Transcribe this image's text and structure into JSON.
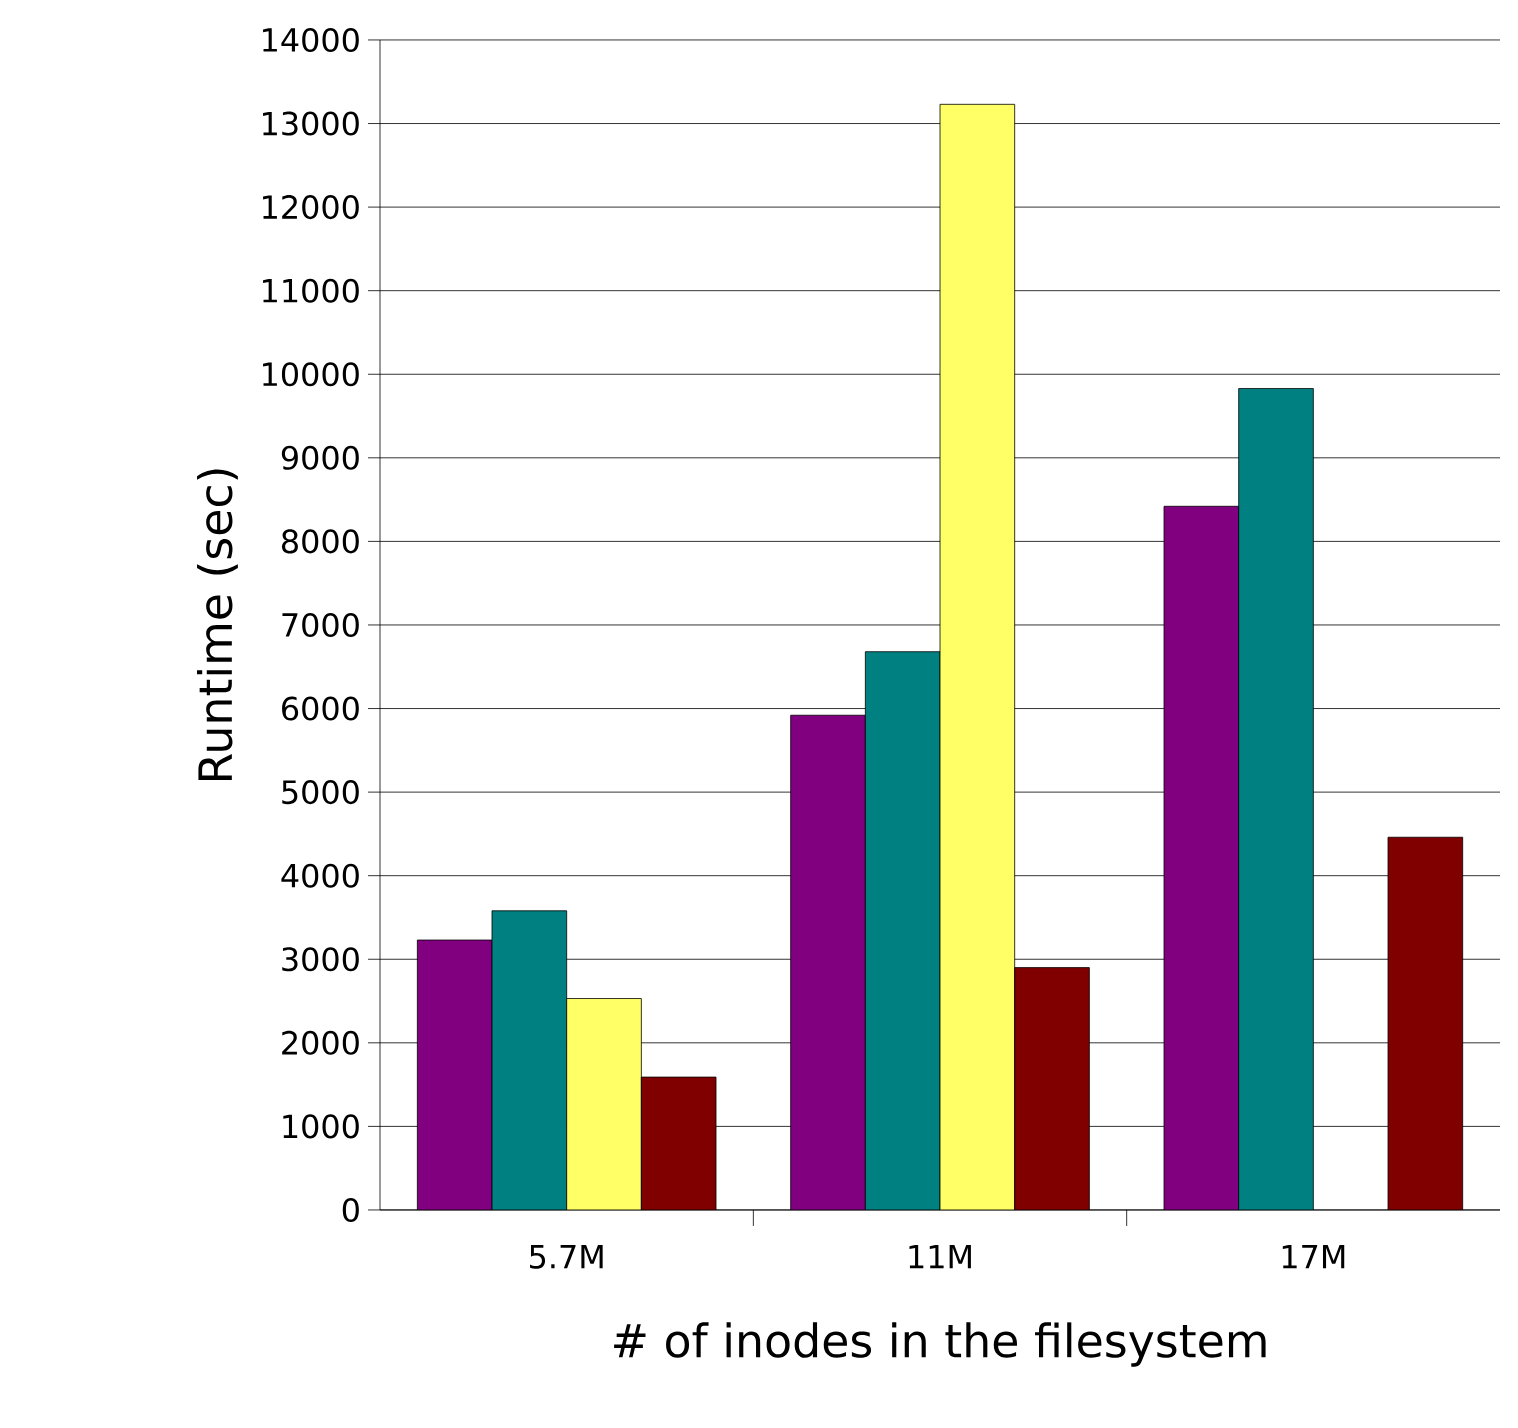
{
  "chart_data": {
    "type": "bar",
    "xlabel": "# of inodes in the filesystem",
    "ylabel": "Runtime (sec)",
    "categories": [
      "5.7M",
      "11M",
      "17M"
    ],
    "series": [
      {
        "color": "#800080",
        "values": [
          3230,
          5920,
          8420
        ]
      },
      {
        "color": "#008080",
        "values": [
          3580,
          6680,
          9830
        ]
      },
      {
        "color": "#ffff66",
        "values": [
          2530,
          13230,
          null
        ]
      },
      {
        "color": "#800000",
        "values": [
          1590,
          2900,
          4460
        ]
      }
    ],
    "ylim": [
      0,
      14000
    ],
    "yticks": [
      0,
      1000,
      2000,
      3000,
      4000,
      5000,
      6000,
      7000,
      8000,
      9000,
      10000,
      11000,
      12000,
      13000,
      14000
    ],
    "grid": "y"
  }
}
